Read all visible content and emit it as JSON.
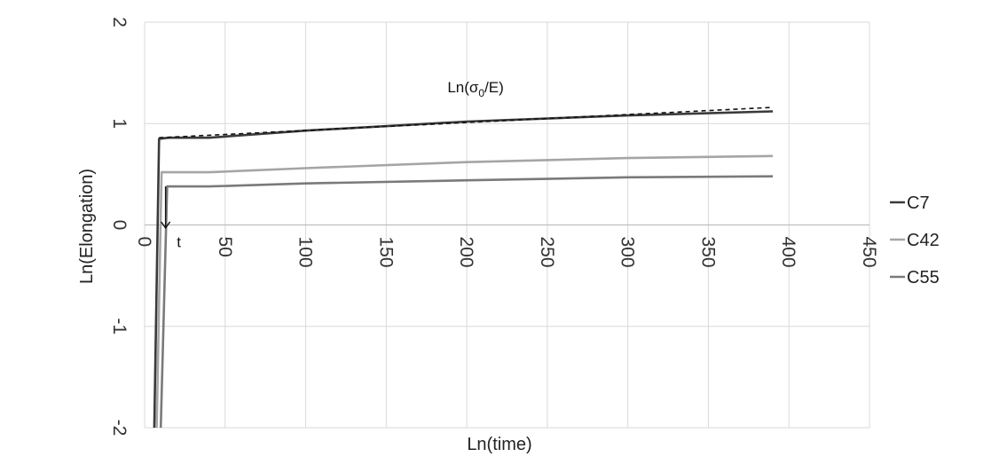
{
  "chart_data": {
    "type": "line",
    "title": "",
    "xlabel": "Ln(time)",
    "ylabel": "Ln(Elongation)",
    "xlim": [
      0,
      450
    ],
    "ylim": [
      -2,
      2
    ],
    "x_ticks": [
      "0",
      "50",
      "100",
      "150",
      "200",
      "250",
      "300",
      "350",
      "400",
      "450"
    ],
    "y_ticks": [
      "2",
      "1",
      "0",
      "-1",
      "-2"
    ],
    "grid": true,
    "legend": "right",
    "series": [
      {
        "name": "C7",
        "color": "#3a3a3a",
        "dashed": false,
        "x": [
          6,
          9,
          15,
          40,
          100,
          200,
          300,
          390
        ],
        "y": [
          -2,
          0.85,
          0.86,
          0.86,
          0.93,
          1.02,
          1.08,
          1.12
        ]
      },
      {
        "name": "C42",
        "color": "#a5a5a5",
        "dashed": false,
        "x": [
          7.5,
          10.5,
          14,
          40,
          100,
          200,
          300,
          390
        ],
        "y": [
          -2,
          0.52,
          0.52,
          0.52,
          0.56,
          0.62,
          0.66,
          0.68
        ]
      },
      {
        "name": "C55",
        "color": "#7a7a7a",
        "dashed": false,
        "x": [
          10,
          14,
          40,
          100,
          200,
          300,
          390
        ],
        "y": [
          -2,
          0.38,
          0.38,
          0.41,
          0.44,
          0.47,
          0.48
        ]
      },
      {
        "name": "",
        "color": "#111111",
        "dashed": true,
        "x": [
          9,
          390
        ],
        "y": [
          0.86,
          1.16
        ]
      }
    ],
    "annotations": [
      {
        "text": "Ln(σ",
        "sub": "0",
        "tail": "/E)",
        "x": 188,
        "y": 1.31
      },
      {
        "text": "t",
        "x": 20,
        "y": -0.22
      }
    ],
    "arrow": {
      "x": 13,
      "y_from": 0.38,
      "y_to": -0.03
    }
  }
}
